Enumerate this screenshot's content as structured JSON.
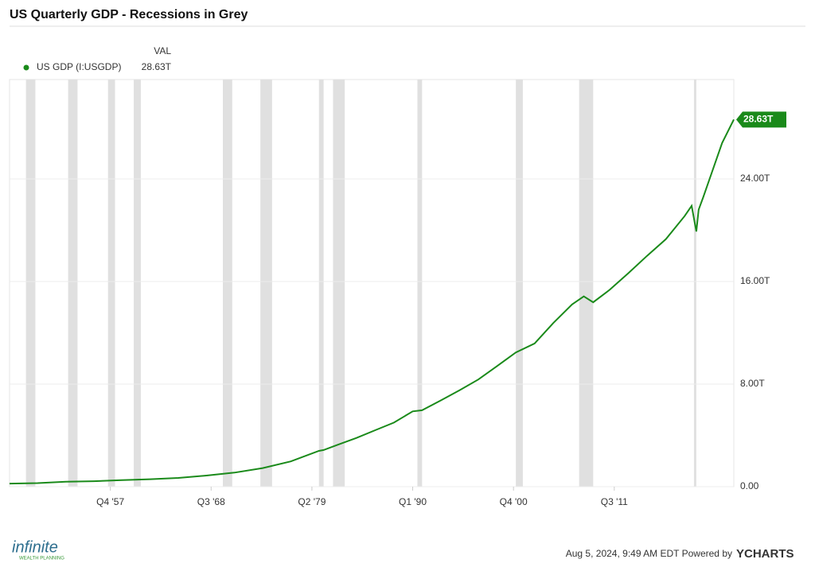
{
  "chart_data": {
    "type": "line",
    "title": "US Quarterly GDP - Recessions in Grey",
    "legend_header": "VAL",
    "x": [
      "Q1 '47",
      "Q1 '50",
      "Q1 '53",
      "Q1 '56",
      "Q1 '59",
      "Q1 '62",
      "Q1 '65",
      "Q1 '68",
      "Q1 '71",
      "Q1 '74",
      "Q1 '77",
      "Q1 '80",
      "Q3 '80",
      "Q1 '82",
      "Q1 '84",
      "Q1 '86",
      "Q1 '88",
      "Q1 '90",
      "Q1 '91",
      "Q1 '93",
      "Q1 '95",
      "Q1 '97",
      "Q1 '99",
      "Q1 '01",
      "Q1 '03",
      "Q1 '05",
      "Q1 '07",
      "Q2 '08",
      "Q2 '09",
      "Q1 '11",
      "Q1 '13",
      "Q1 '15",
      "Q1 '17",
      "Q1 '19",
      "Q4 '19",
      "Q2 '20",
      "Q3 '20",
      "Q1 '21",
      "Q1 '22",
      "Q1 '23",
      "Q2 '24"
    ],
    "series": [
      {
        "name": "US GDP (I:USGDP)",
        "color": "#1a8a1a",
        "values": [
          0.243,
          0.281,
          0.386,
          0.43,
          0.51,
          0.58,
          0.68,
          0.87,
          1.1,
          1.45,
          1.97,
          2.79,
          2.86,
          3.27,
          3.8,
          4.4,
          5.0,
          5.87,
          5.96,
          6.73,
          7.52,
          8.36,
          9.41,
          10.47,
          11.17,
          12.76,
          14.21,
          14.84,
          14.38,
          15.35,
          16.65,
          18.0,
          19.3,
          21.1,
          21.9,
          19.9,
          21.6,
          22.6,
          24.7,
          26.8,
          28.63
        ],
        "value_labels": [
          null,
          null,
          null,
          null,
          null,
          null,
          null,
          null,
          null,
          null,
          null,
          null,
          null,
          null,
          null,
          null,
          null,
          null,
          null,
          null,
          null,
          null,
          null,
          null,
          null,
          null,
          null,
          null,
          null,
          null,
          null,
          null,
          null,
          null,
          null,
          null,
          null,
          null,
          null,
          null,
          "28.63T"
        ]
      }
    ],
    "recessions": [
      [
        "Q4 '48",
        "Q4 '49"
      ],
      [
        "Q2 '53",
        "Q2 '54"
      ],
      [
        "Q3 '57",
        "Q2 '58"
      ],
      [
        "Q2 '60",
        "Q1 '61"
      ],
      [
        "Q4 '69",
        "Q4 '70"
      ],
      [
        "Q4 '73",
        "Q1 '75"
      ],
      [
        "Q1 '80",
        "Q3 '80"
      ],
      [
        "Q3 '81",
        "Q4 '82"
      ],
      [
        "Q3 '90",
        "Q1 '91"
      ],
      [
        "Q1 '01",
        "Q4 '01"
      ],
      [
        "Q4 '07",
        "Q2 '09"
      ],
      [
        "Q1 '20",
        "Q2 '20"
      ]
    ],
    "xlim": [
      "Q1 '47",
      "Q2 '24"
    ],
    "xticks": [
      "Q4 '57",
      "Q3 '68",
      "Q2 '79",
      "Q1 '90",
      "Q4 '00",
      "Q3 '11"
    ],
    "ylim": [
      0,
      31.75
    ],
    "yticks": [
      {
        "value": 0,
        "label": "0.00"
      },
      {
        "value": 8,
        "label": "8.00T"
      },
      {
        "value": 16,
        "label": "16.00T"
      },
      {
        "value": 24,
        "label": "24.00T"
      }
    ],
    "grid": true,
    "recession_color": "#e0e0e0",
    "footer": "Aug 5, 2024, 9:49 AM EDT Powered by",
    "brand": "YCHARTS",
    "logo": "infinite",
    "logo_sub": "WEALTH PLANNING"
  }
}
